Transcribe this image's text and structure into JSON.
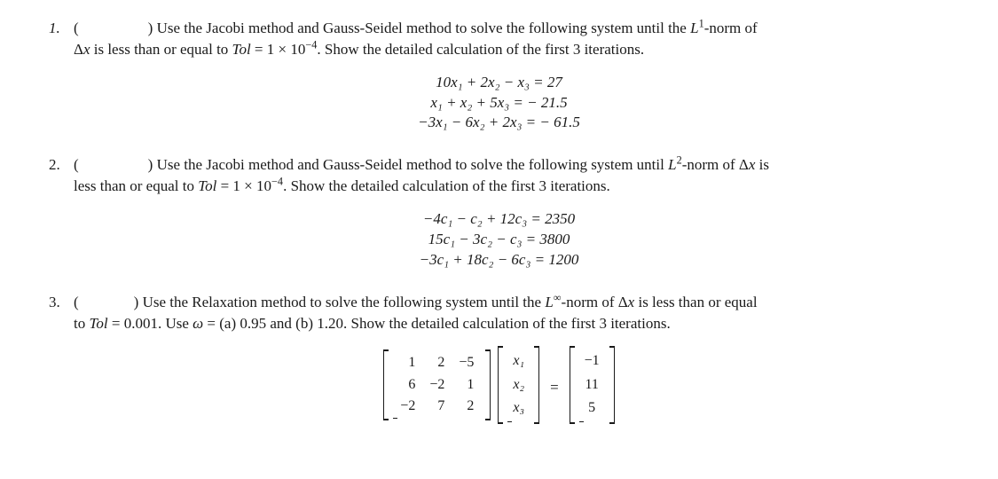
{
  "page": {
    "background_color": "#ffffff",
    "text_color": "#1a1a1a",
    "font_family": "Times New Roman",
    "base_fontsize": 17
  },
  "problems": [
    {
      "number": "1.",
      "prefix": "(",
      "suffix": ") Use the Jacobi method and Gauss-Seidel method to solve the following system until the ",
      "norm_label": "L",
      "norm_sup": "1",
      "norm_after": "-norm of",
      "line2_prefix": "Δ",
      "line2_var": "x",
      "line2_mid": " is less than or equal to ",
      "tol_label": "Tol",
      "tol_eq": " = 1 × 10",
      "tol_sup": "−4",
      "line2_end": ". Show the detailed calculation of the first 3 iterations.",
      "equations": [
        "10x₁ + 2x₂ − x₃ = 27",
        "x₁ + x₂ + 5x₃ = − 21.5",
        "−3x₁ − 6x₂ + 2x₃ = − 61.5"
      ]
    },
    {
      "number": "2.",
      "prefix": "(",
      "suffix": ") Use the Jacobi method and Gauss-Seidel method to solve the following system until ",
      "norm_label": "L",
      "norm_sup": "2",
      "norm_after": "-norm of Δ",
      "norm_var": "x",
      "norm_tail": " is",
      "line2_start": "less than or equal to ",
      "tol_label": "Tol",
      "tol_eq": " = 1 × 10",
      "tol_sup": "−4",
      "line2_end": ". Show the detailed calculation of the first 3 iterations.",
      "equations": [
        "−4c₁ − c₂ + 12c₃ = 2350",
        "15c₁ − 3c₂ − c₃ = 3800",
        "−3c₁ + 18c₂ − 6c₃ = 1200"
      ]
    },
    {
      "number": "3.",
      "prefix": "(",
      "suffix": ") Use the Relaxation method to solve the following system until the ",
      "norm_label": "L",
      "norm_sup": "∞",
      "norm_after": "-norm of Δ",
      "norm_var": "x",
      "norm_tail": " is less than or equal",
      "line2_start": "to ",
      "tol_label": "Tol",
      "tol_eq": " = 0.001",
      "line2_mid": ". Use ",
      "omega": "ω",
      "line2_omega": " = (a) 0.95 and (b) 1.20. Show the detailed calculation of the first 3 iterations.",
      "matrix": {
        "A": [
          [
            1,
            2,
            -5
          ],
          [
            6,
            -2,
            1
          ],
          [
            -2,
            7,
            2
          ]
        ],
        "x": [
          "x₁",
          "x₂",
          "x₃"
        ],
        "b": [
          "−1",
          "11",
          "5"
        ],
        "A_display": [
          [
            "1",
            "2",
            "−5"
          ],
          [
            "6",
            "−2",
            "1"
          ],
          [
            "−2",
            "7",
            "2"
          ]
        ]
      }
    }
  ]
}
